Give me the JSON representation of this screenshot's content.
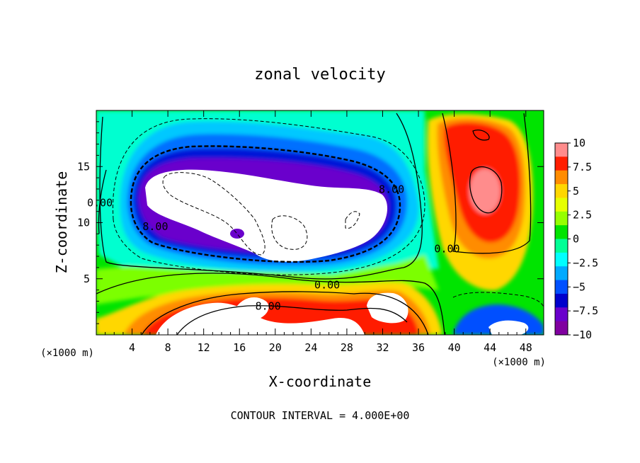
{
  "chart_data": {
    "type": "heatmap",
    "title": "zonal velocity",
    "xlabel": "X-coordinate",
    "ylabel": "Z-coordinate",
    "x_unit_label": "(×1000 m)",
    "y_unit_label": "(×1000 m)",
    "footnote": "CONTOUR INTERVAL = 4.000E+00",
    "xlim": [
      0,
      50
    ],
    "ylim": [
      0,
      20
    ],
    "x_ticks": [
      4,
      8,
      12,
      16,
      20,
      24,
      28,
      32,
      36,
      40,
      44,
      48
    ],
    "y_ticks": [
      5,
      10,
      15
    ],
    "x_tick_labels": [
      "4",
      "8",
      "12",
      "16",
      "20",
      "24",
      "28",
      "32",
      "36",
      "40",
      "44",
      "48"
    ],
    "y_tick_labels": [
      "5",
      "10",
      "15"
    ],
    "colorbar": {
      "range": [
        -10,
        10
      ],
      "tick_values": [
        10,
        7.5,
        5,
        2.5,
        0,
        -2.5,
        -5,
        -7.5,
        -10
      ],
      "tick_labels": [
        "10",
        "7.5",
        "5",
        "2.5",
        "0",
        "−2.5",
        "−5",
        "−7.5",
        "−10"
      ],
      "colors_top_to_bottom": [
        "#ff8c8c",
        "#ff1e00",
        "#ff8c00",
        "#ffd700",
        "#e6ff00",
        "#96ff00",
        "#00e400",
        "#00ff96",
        "#00ffff",
        "#00aaff",
        "#0050ff",
        "#0000cc",
        "#6a00cc",
        "#8000a0"
      ]
    },
    "contour_labels": [
      {
        "text": "8.00",
        "x": 33,
        "y": 12.9
      },
      {
        "text": "8.00",
        "x": 6.6,
        "y": 9.6
      },
      {
        "text": "0.00",
        "x": 0.4,
        "y": 11.7
      },
      {
        "text": "0.00",
        "x": 39.2,
        "y": 7.6
      },
      {
        "text": "0.00",
        "x": 25.8,
        "y": 4.4
      },
      {
        "text": "8.00",
        "x": 19.2,
        "y": 2.5
      }
    ],
    "features": [
      {
        "sign": "negative",
        "x": 20,
        "y": 11,
        "note": "strong easterly core, below -10"
      },
      {
        "sign": "positive",
        "x": 43.5,
        "y": 13,
        "note": "westerly maximum near 10"
      },
      {
        "sign": "positive",
        "x": 16,
        "y": 1.5,
        "note": "low-level westerly jet above 10"
      },
      {
        "sign": "negative",
        "x": 45,
        "y": 0.8,
        "note": "weak easterly near surface"
      }
    ]
  }
}
